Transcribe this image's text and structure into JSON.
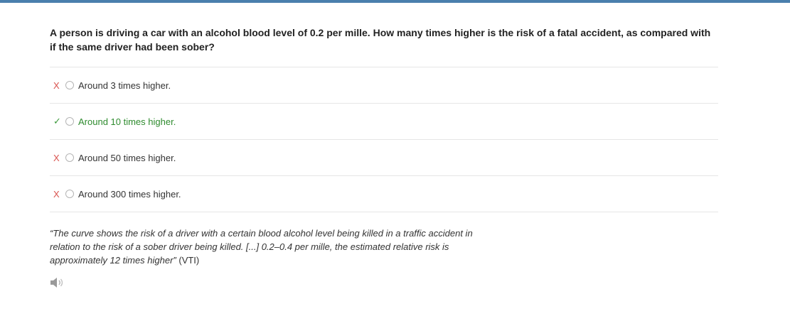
{
  "question": "A person is driving a car with an alcohol blood level of 0.2 per mille. How many times higher is the risk of a fatal accident, as compared with if the same driver had been sober?",
  "options": [
    {
      "mark": "X",
      "status": "wrong",
      "label": "Around 3 times higher."
    },
    {
      "mark": "✓",
      "status": "correct",
      "label": "Around 10 times higher."
    },
    {
      "mark": "X",
      "status": "wrong",
      "label": "Around 50 times higher."
    },
    {
      "mark": "X",
      "status": "wrong",
      "label": "Around 300 times higher."
    }
  ],
  "explanation": {
    "quote": "“The curve shows the risk of a driver with a certain blood alcohol level being killed in a traffic accident in relation to the risk of a sober driver being killed. [...] 0.2–0.4 per mille, the estimated relative risk is approximately 12 times higher”",
    "source": " (VTI)"
  },
  "audio": {
    "icon": "speaker-icon"
  },
  "colors": {
    "top_bar": "#4a7fad",
    "wrong_mark": "#d9534f",
    "correct_mark": "#3c9a3c",
    "correct_text": "#2e8b2e"
  }
}
